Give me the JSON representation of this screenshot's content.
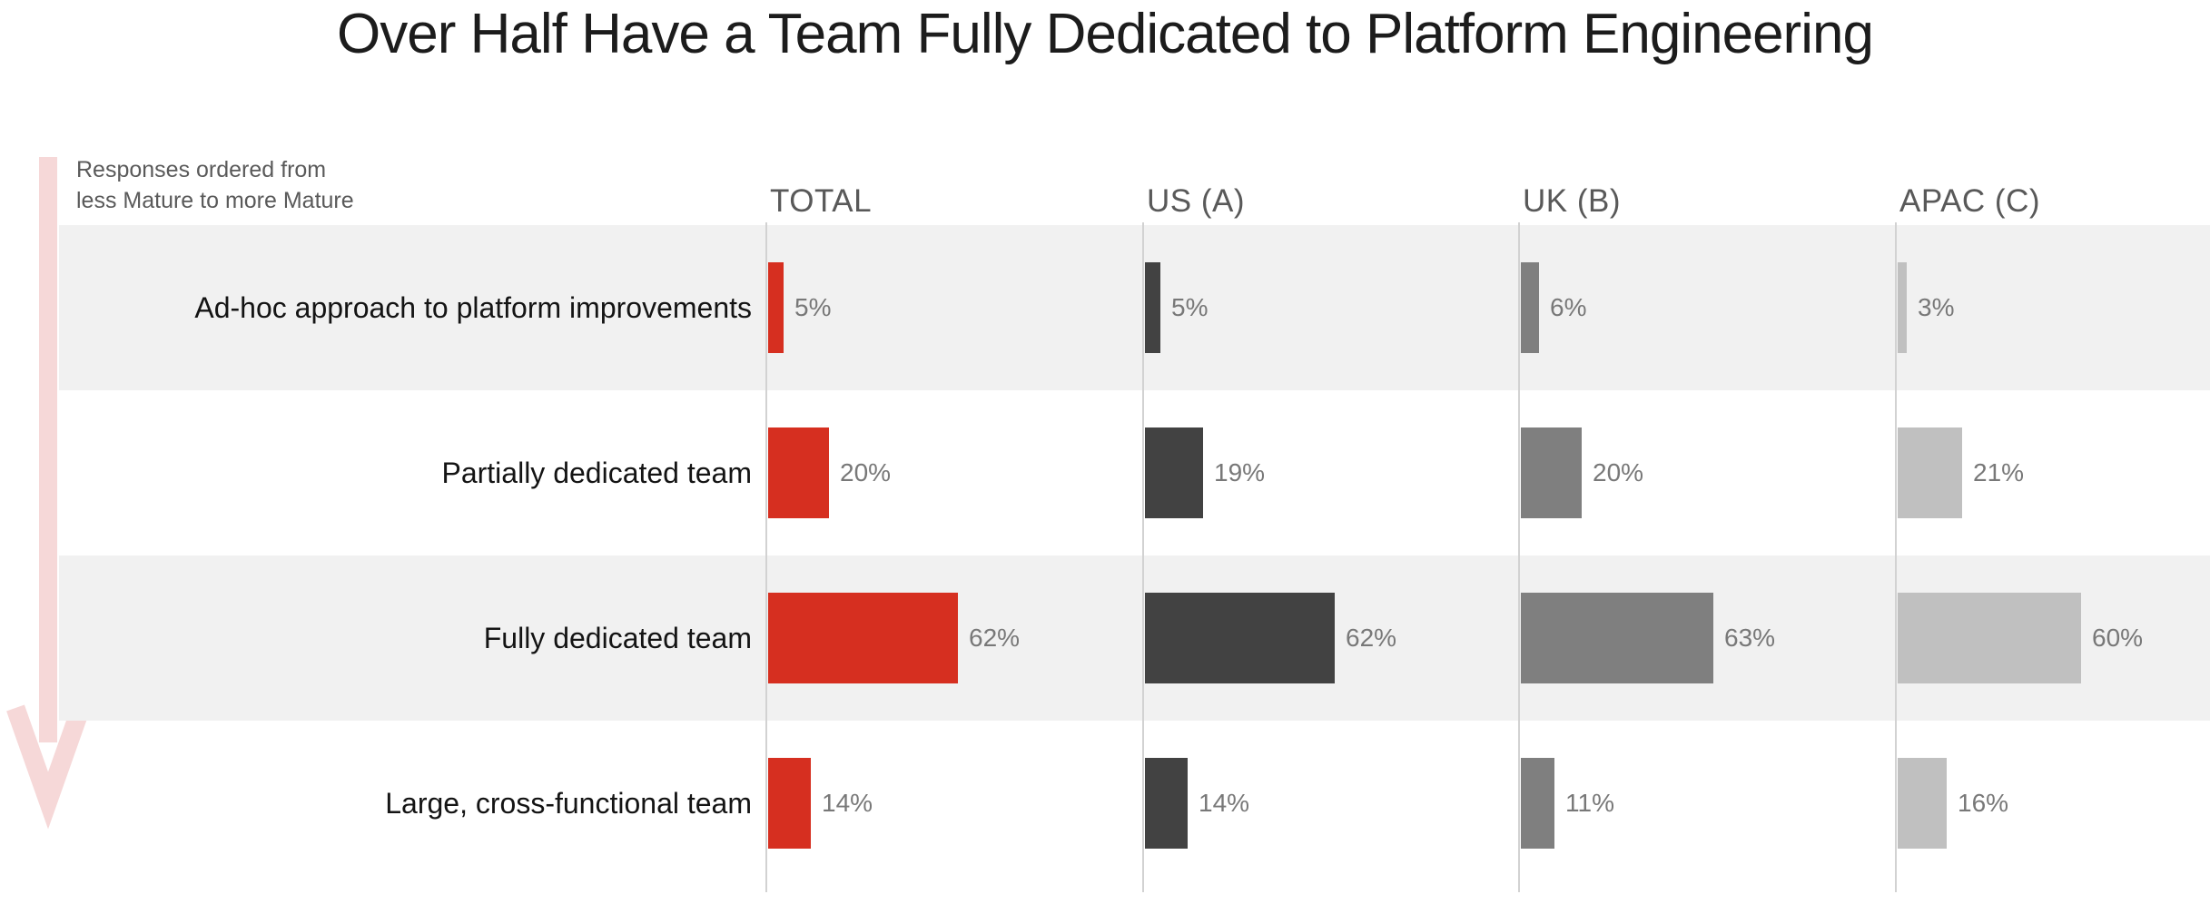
{
  "title": "Over Half Have a Team Fully Dedicated to Platform Engineering",
  "annotation": {
    "line1": "Responses ordered from",
    "line2": "less Mature to more Mature"
  },
  "colors": {
    "row_stripe": "#f1f1f1",
    "gridline": "#d2d2d2",
    "arrow_pink": "#f6d8d8",
    "total_red": "#d62f20",
    "us_dark_gray": "#424242",
    "uk_mid_gray": "#7f7f7f",
    "apac_light_gray": "#c0c0c0"
  },
  "chart_data": {
    "type": "bar",
    "orientation": "horizontal",
    "title": "Over Half Have a Team Fully Dedicated to Platform Engineering",
    "annotation": "Responses ordered from less Mature to more Mature",
    "categories": [
      "Ad-hoc approach to platform improvements",
      "Partially dedicated team",
      "Fully dedicated team",
      "Large, cross-functional team"
    ],
    "series": [
      {
        "name": "TOTAL",
        "color": "#d62f20",
        "values": [
          5,
          20,
          62,
          14
        ]
      },
      {
        "name": "US (A)",
        "color": "#424242",
        "values": [
          5,
          19,
          62,
          14
        ]
      },
      {
        "name": "UK (B)",
        "color": "#7f7f7f",
        "values": [
          6,
          20,
          63,
          11
        ]
      },
      {
        "name": "APAC (C)",
        "color": "#c0c0c0",
        "values": [
          3,
          21,
          60,
          16
        ]
      }
    ],
    "unit_suffix": "%",
    "xlim": [
      0,
      100
    ],
    "grid": "vertical-baselines-only",
    "legend_position": "column-headers",
    "row_striping": true
  }
}
